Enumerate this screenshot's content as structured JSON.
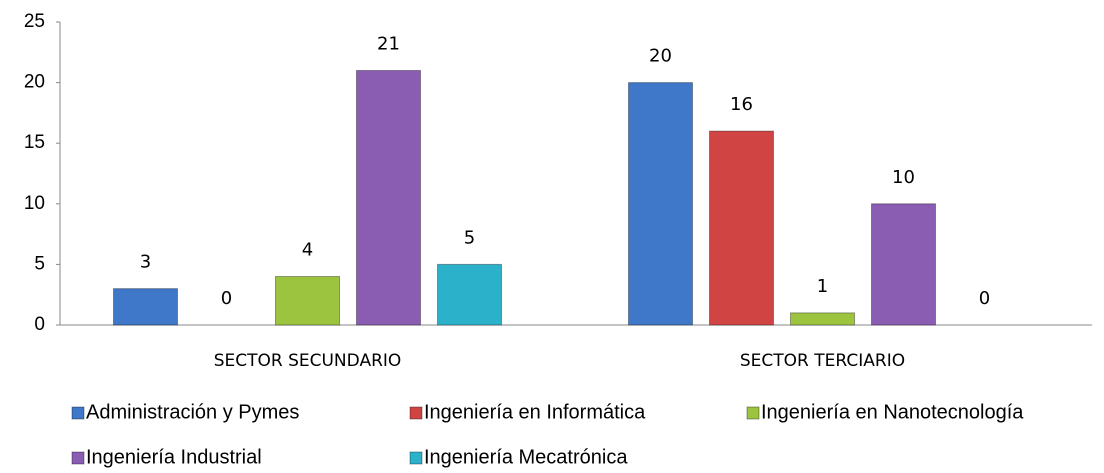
{
  "chart_data": {
    "type": "bar",
    "categories": [
      "SECTOR SECUNDARIO",
      "SECTOR TERCIARIO"
    ],
    "series": [
      {
        "name": "Administración y Pymes",
        "color": "#3f78c8",
        "values": [
          3,
          20
        ]
      },
      {
        "name": "Ingeniería en Informática",
        "color": "#d04444",
        "values": [
          0,
          16
        ]
      },
      {
        "name": "Ingeniería en Nanotecnología",
        "color": "#9cc43e",
        "values": [
          4,
          1
        ]
      },
      {
        "name": "Ingeniería Industrial",
        "color": "#8a5cb2",
        "values": [
          21,
          10
        ]
      },
      {
        "name": "Ingeniería Mecatrónica",
        "color": "#2bb2ca",
        "values": [
          5,
          0
        ]
      }
    ],
    "ylim": [
      0,
      25
    ],
    "yticks": [
      0,
      5,
      10,
      15,
      20,
      25
    ],
    "grid": false,
    "legend": "bottom"
  }
}
